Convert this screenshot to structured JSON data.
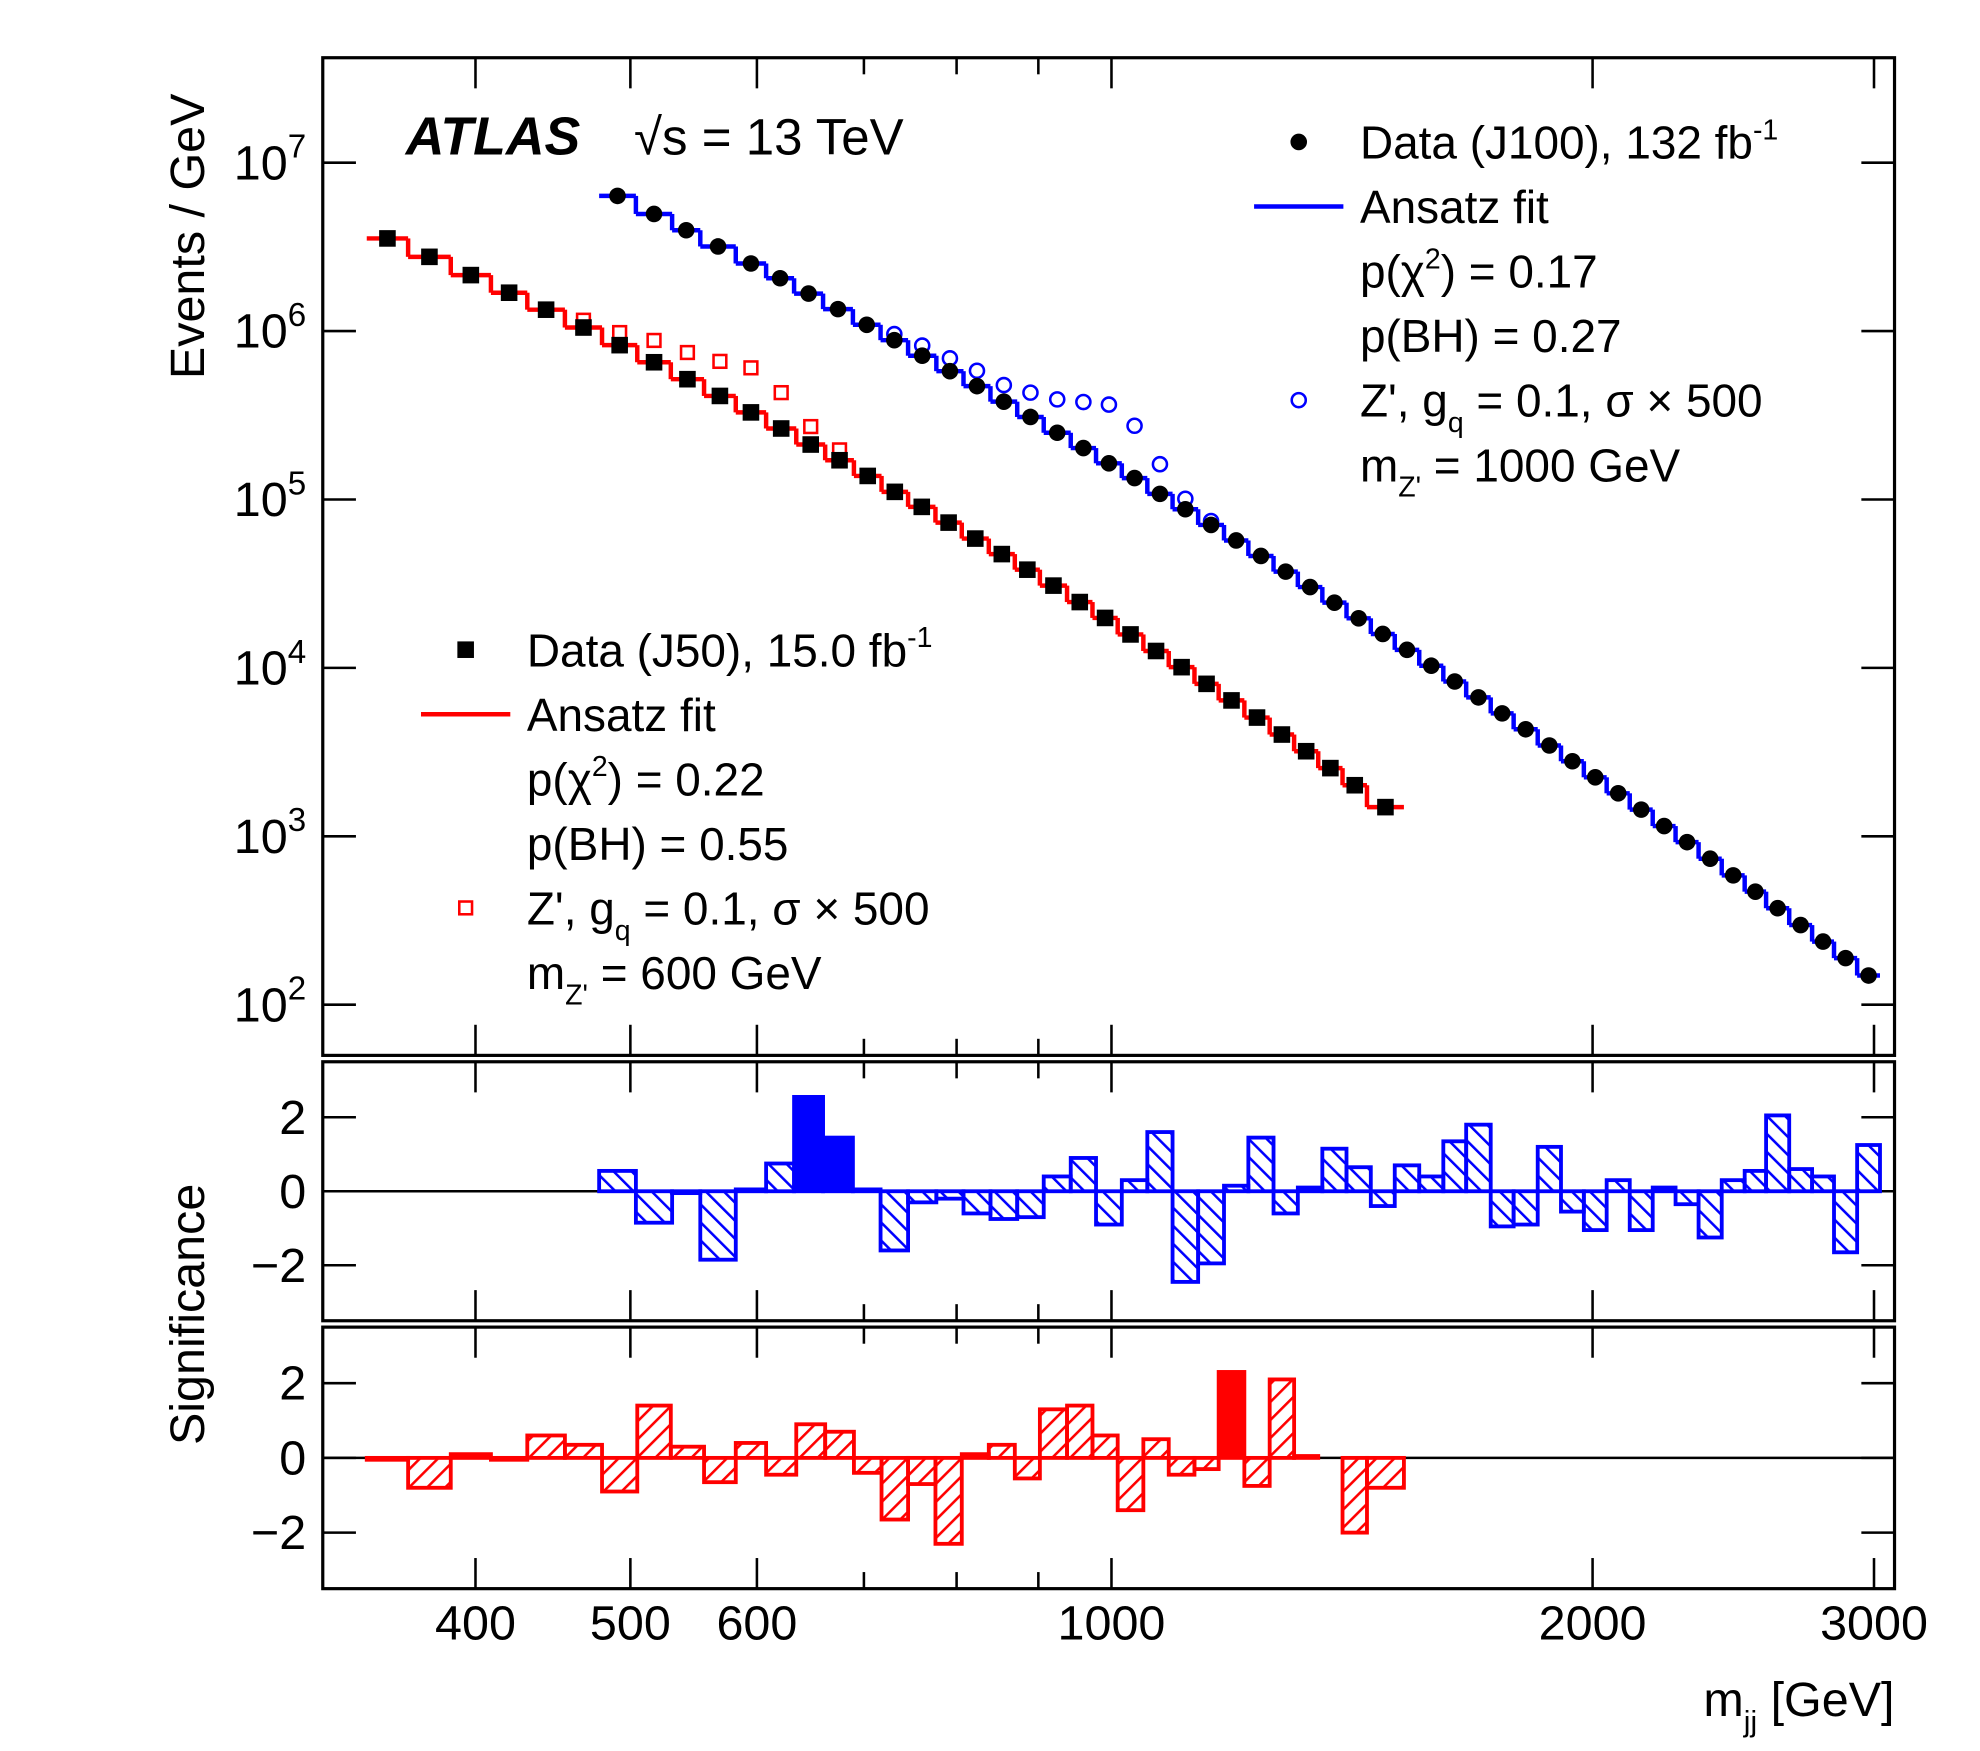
{
  "chart_data": [
    {
      "type": "spectrum",
      "ylabel": "Events / GeV",
      "atlas_label": "ATLAS",
      "energy_label": "√s = 13 TeV",
      "log_x": true,
      "log_y": true,
      "xlim": [
        321,
        3090
      ],
      "ylim": [
        50,
        42000000
      ],
      "yticks": [
        {
          "value": 100,
          "label": "10",
          "exponent": "2"
        },
        {
          "value": 1000,
          "label": "10",
          "exponent": "3"
        },
        {
          "value": 10000,
          "label": "10",
          "exponent": "4"
        },
        {
          "value": 100000,
          "label": "10",
          "exponent": "5"
        },
        {
          "value": 1000000,
          "label": "10",
          "exponent": "6"
        },
        {
          "value": 10000000,
          "label": "10",
          "exponent": "7"
        }
      ],
      "series": [
        {
          "name": "J100",
          "color": "#0000ff",
          "marker": "circle",
          "legend_position": "top-right",
          "bins": [
            478,
            504,
            531,
            553,
            582,
            608,
            633,
            660,
            689,
            717,
            746,
            777,
            808,
            840,
            873,
            907,
            943,
            978,
            1015,
            1053,
            1092,
            1133,
            1176,
            1218,
            1263,
            1308,
            1355,
            1403,
            1453,
            1504,
            1558,
            1613,
            1667,
            1727,
            1785,
            1848,
            1911,
            1975,
            2041,
            2110,
            2181,
            2254,
            2330,
            2409,
            2490,
            2568,
            2655,
            2744,
            2832,
            2928,
            3026
          ],
          "values": [
            6350000,
            4960000,
            3970000,
            3180000,
            2520000,
            2060000,
            1670000,
            1350000,
            1090000,
            883000,
            714000,
            578000,
            471000,
            381000,
            309000,
            249000,
            202000,
            164000,
            134000,
            108000,
            87500,
            70600,
            57100,
            46200,
            37300,
            30200,
            24400,
            19700,
            15900,
            12800,
            10300,
            8300,
            6680,
            5370,
            4320,
            3460,
            2790,
            2240,
            1800,
            1440,
            1150,
            923,
            736,
            586,
            469,
            374,
            297,
            237,
            189,
            149
          ],
          "fit": [
            6350000,
            4960000,
            3970000,
            3180000,
            2520000,
            2060000,
            1670000,
            1350000,
            1090000,
            883000,
            714000,
            578000,
            471000,
            381000,
            309000,
            249000,
            202000,
            164000,
            134000,
            108000,
            87500,
            70600,
            57100,
            46200,
            37300,
            30200,
            24400,
            19700,
            15900,
            12800,
            10300,
            8300,
            6680,
            5370,
            4320,
            3460,
            2790,
            2240,
            1800,
            1440,
            1150,
            923,
            736,
            586,
            469,
            374,
            297,
            237,
            189,
            149
          ],
          "signal": [
            null,
            null,
            null,
            null,
            null,
            null,
            null,
            null,
            null,
            960000,
            820000,
            689000,
            581000,
            478000,
            431000,
            393000,
            379000,
            366000,
            274000,
            162000,
            101000,
            74500,
            null,
            null,
            null,
            null,
            null,
            null,
            null,
            null,
            null,
            null,
            null,
            null,
            null,
            null,
            null,
            null,
            null,
            null,
            null,
            null,
            null,
            null,
            null,
            null,
            null,
            null,
            null,
            null
          ],
          "legend": [
            {
              "symbol": "data",
              "runs": [
                {
                  "text": "Data (J100), 132 fb"
                },
                {
                  "text": "-1",
                  "shift": "sup"
                }
              ]
            },
            {
              "symbol": "fit",
              "runs": [
                {
                  "text": "Ansatz fit"
                }
              ]
            },
            {
              "runs": [
                {
                  "text": "p(χ"
                },
                {
                  "text": "2",
                  "shift": "sup"
                },
                {
                  "text": ") = 0.17"
                }
              ]
            },
            {
              "runs": [
                {
                  "text": "p(BH) = 0.27"
                }
              ]
            },
            {
              "symbol": "signal",
              "runs": [
                {
                  "text": "Z', g"
                },
                {
                  "text": "q",
                  "shift": "sub"
                },
                {
                  "text": " = 0.1, σ × 500"
                }
              ]
            },
            {
              "runs": [
                {
                  "text": "m"
                },
                {
                  "text": "Z'",
                  "shift": "sub"
                },
                {
                  "text": " = 1000 GeV"
                }
              ]
            }
          ]
        },
        {
          "name": "J50",
          "color": "#ff0000",
          "marker": "square",
          "legend_position": "center-left",
          "bins": [
            342,
            363,
            386,
            409,
            431,
            455,
            480,
            505,
            530,
            556,
            582,
            608,
            635,
            662,
            690,
            718,
            746,
            776,
            806,
            838,
            870,
            902,
            938,
            973,
            1009,
            1047,
            1086,
            1127,
            1167,
            1211,
            1256,
            1301,
            1347,
            1395,
            1445,
            1524
          ],
          "values": [
            3550000,
            2760000,
            2150000,
            1690000,
            1340000,
            1050000,
            825000,
            653000,
            518000,
            412000,
            329000,
            264000,
            212000,
            171000,
            138000,
            111000,
            90400,
            72900,
            58600,
            47400,
            38300,
            30800,
            24600,
            19800,
            15800,
            12600,
            10100,
            8040,
            6410,
            5070,
            4020,
            3200,
            2540,
            2010,
            1490
          ],
          "fit": [
            3550000,
            2760000,
            2150000,
            1690000,
            1340000,
            1050000,
            825000,
            653000,
            518000,
            412000,
            329000,
            264000,
            212000,
            171000,
            138000,
            111000,
            90400,
            72900,
            58600,
            47400,
            38300,
            30800,
            24600,
            19800,
            15800,
            12600,
            10100,
            8040,
            6410,
            5070,
            4020,
            3200,
            2540,
            2010,
            1490
          ],
          "signal": [
            null,
            null,
            null,
            null,
            null,
            1160000,
            980000,
            880000,
            746000,
            661000,
            605000,
            431000,
            271000,
            197000,
            null,
            null,
            null,
            null,
            null,
            null,
            null,
            null,
            null,
            null,
            null,
            null,
            null,
            null,
            null,
            null,
            null,
            null,
            null,
            null,
            null
          ],
          "legend": [
            {
              "symbol": "data",
              "runs": [
                {
                  "text": "Data (J50), 15.0 fb"
                },
                {
                  "text": "-1",
                  "shift": "sup"
                }
              ]
            },
            {
              "symbol": "fit",
              "runs": [
                {
                  "text": "Ansatz fit"
                }
              ]
            },
            {
              "runs": [
                {
                  "text": "p(χ"
                },
                {
                  "text": "2",
                  "shift": "sup"
                },
                {
                  "text": ") = 0.22"
                }
              ]
            },
            {
              "runs": [
                {
                  "text": "p(BH) = 0.55"
                }
              ]
            },
            {
              "symbol": "signal",
              "runs": [
                {
                  "text": "Z', g"
                },
                {
                  "text": "q",
                  "shift": "sub"
                },
                {
                  "text": " = 0.1, σ × 500"
                }
              ]
            },
            {
              "runs": [
                {
                  "text": "m"
                },
                {
                  "text": "Z'",
                  "shift": "sub"
                },
                {
                  "text": " = 600 GeV"
                }
              ]
            }
          ]
        }
      ]
    },
    {
      "type": "significance",
      "ylabel": "Significance",
      "log_x": true,
      "xlim": [
        321,
        3090
      ],
      "ylim": [
        -3.5,
        3.5
      ],
      "yticks": [
        {
          "value": -2,
          "label": "−2"
        },
        0,
        2
      ],
      "series": [
        {
          "name": "J100",
          "color": "#0000ff",
          "hatch": "backslash",
          "filled_bins": [
            6,
            7
          ],
          "values": [
            0.55,
            -0.85,
            -0.05,
            -1.85,
            0.05,
            0.75,
            2.55,
            1.45,
            0.05,
            -1.6,
            -0.3,
            -0.2,
            -0.6,
            -0.75,
            -0.7,
            0.4,
            0.9,
            -0.9,
            0.3,
            1.6,
            -2.45,
            -1.95,
            0.15,
            1.45,
            -0.6,
            0.1,
            1.15,
            0.65,
            -0.4,
            0.7,
            0.4,
            1.35,
            1.8,
            -0.95,
            -0.9,
            1.2,
            -0.55,
            -1.05,
            0.3,
            -1.05,
            0.1,
            -0.35,
            -1.25,
            0.3,
            0.55,
            2.05,
            0.6,
            0.4,
            -1.65,
            1.25
          ]
        }
      ]
    },
    {
      "type": "significance",
      "log_x": true,
      "xlabel": [
        {
          "text": "m"
        },
        {
          "text": "jj",
          "shift": "sub"
        },
        {
          "text": " [GeV]"
        }
      ],
      "xlim": [
        321,
        3090
      ],
      "ylim": [
        -3.5,
        3.5
      ],
      "yticks": [
        {
          "value": -2,
          "label": "−2"
        },
        0,
        2
      ],
      "xticks": [
        400,
        500,
        600,
        1000,
        2000,
        3000
      ],
      "xminor_ticks": [
        700,
        800,
        900
      ],
      "series": [
        {
          "name": "J50",
          "color": "#ff0000",
          "hatch": "slash",
          "filled_bins": [
            28
          ],
          "values": [
            -0.05,
            -0.8,
            0.1,
            -0.05,
            0.6,
            0.35,
            -0.9,
            1.4,
            0.3,
            -0.65,
            0.4,
            -0.45,
            0.9,
            0.7,
            -0.4,
            -1.65,
            -0.7,
            -2.3,
            0.1,
            0.35,
            -0.55,
            1.3,
            1.4,
            0.6,
            -1.4,
            0.5,
            -0.45,
            -0.3,
            2.3,
            -0.75,
            2.1,
            0.05,
            0,
            -2,
            -0.8
          ]
        }
      ]
    }
  ]
}
